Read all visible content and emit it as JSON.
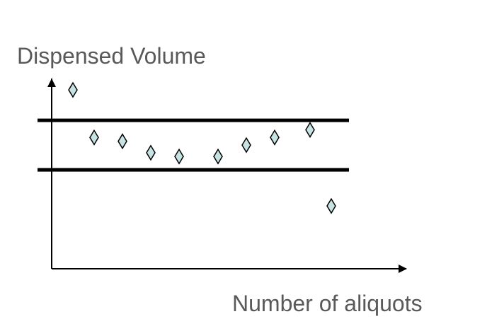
{
  "chart_data": {
    "type": "scatter",
    "title": "",
    "ylabel": "Dispensed Volume",
    "xlabel": "Number of aliquots",
    "marker": "diamond",
    "grid": false,
    "legend": "none",
    "tick_labels": false,
    "xlim": [
      0,
      10
    ],
    "ylim": [
      0,
      10
    ],
    "reference_lines": {
      "upper_limit": 7.8,
      "lower_limit": 5.2
    },
    "points": [
      {
        "x": 0.6,
        "y": 9.4
      },
      {
        "x": 1.2,
        "y": 6.9
      },
      {
        "x": 2.0,
        "y": 6.7
      },
      {
        "x": 2.8,
        "y": 6.1
      },
      {
        "x": 3.6,
        "y": 5.9
      },
      {
        "x": 4.7,
        "y": 5.9
      },
      {
        "x": 5.5,
        "y": 6.5
      },
      {
        "x": 6.3,
        "y": 6.9
      },
      {
        "x": 7.3,
        "y": 7.3
      },
      {
        "x": 7.9,
        "y": 3.3
      }
    ],
    "colors": {
      "marker_fill": "#c6e2e2",
      "marker_stroke": "#000000",
      "axis": "#000000",
      "reference_line": "#000000",
      "label_text": "#595959"
    }
  }
}
